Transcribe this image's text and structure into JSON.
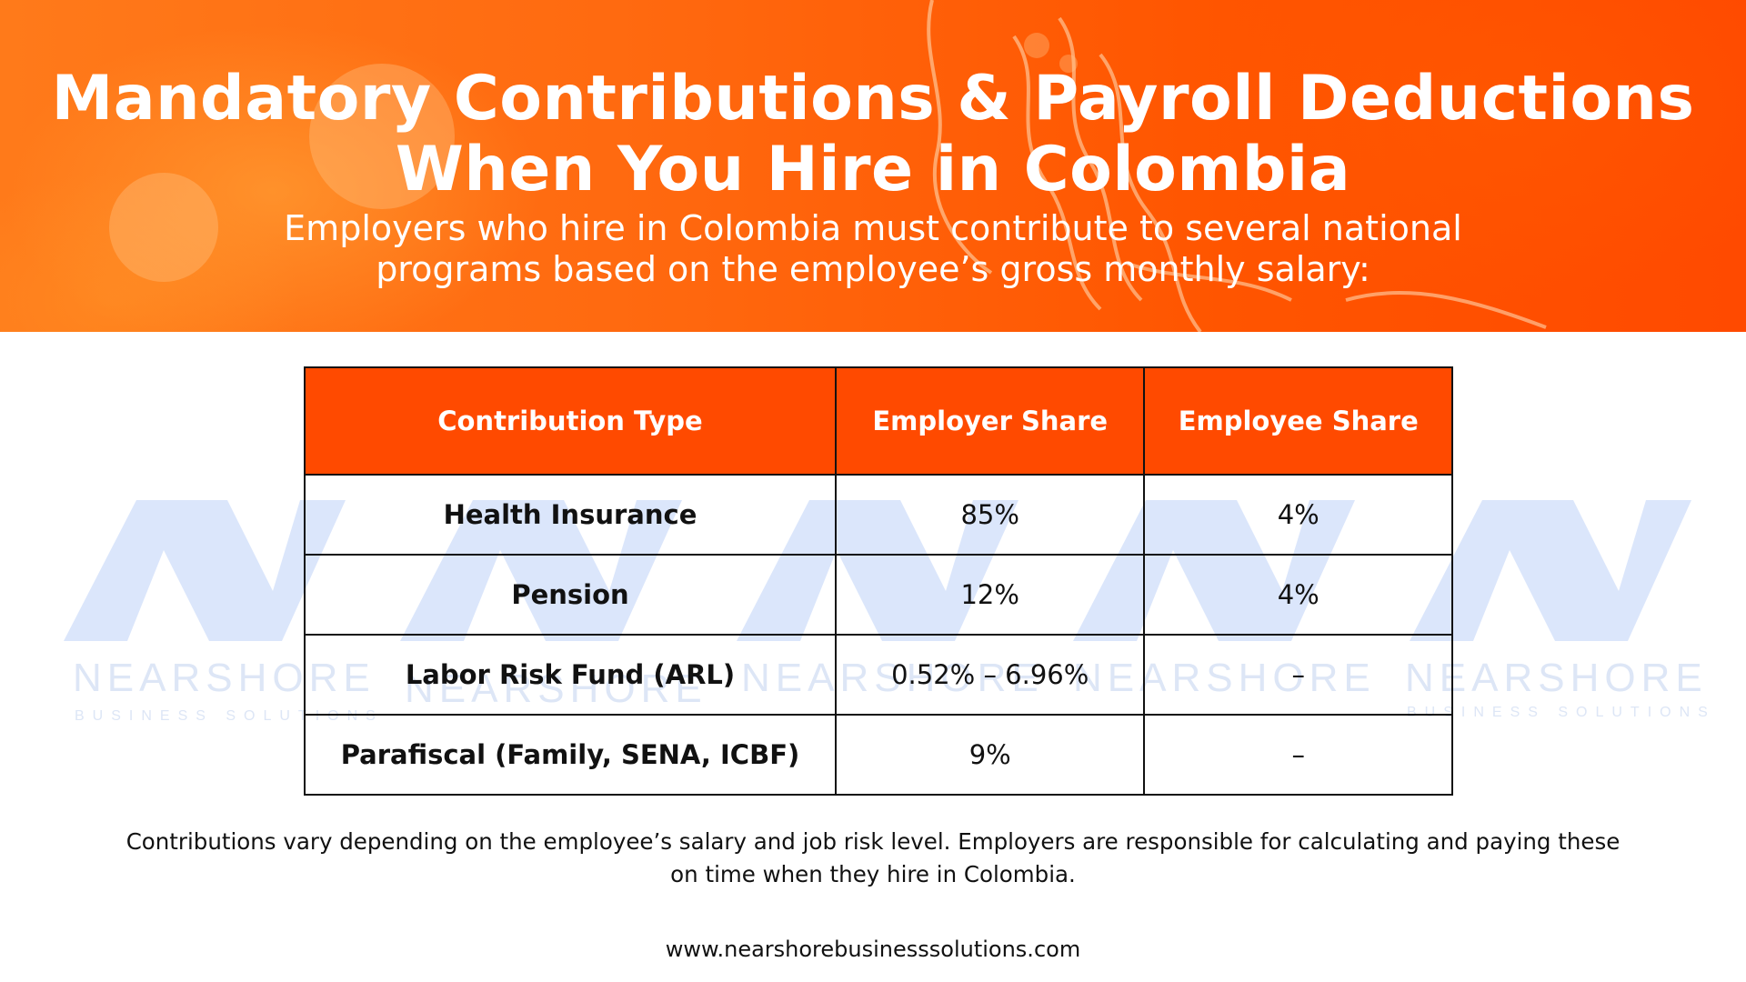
{
  "header": {
    "title_line1": "Mandatory Contributions & Payroll Deductions",
    "title_line2": "When You Hire in Colombia",
    "subtitle_line1": "Employers who hire in Colombia must contribute to several national",
    "subtitle_line2": "programs based on the employee’s gross monthly salary:",
    "accent_color": "#ff4a00"
  },
  "watermark": {
    "logo_text": "NEARSHORE",
    "tagline": "BUSINESS SOLUTIONS",
    "color": "#dbe6fb"
  },
  "table": {
    "headers": [
      "Contribution Type",
      "Employer Share",
      "Employee Share"
    ],
    "rows": [
      {
        "type": "Health Insurance",
        "employer": "85%",
        "employee": "4%"
      },
      {
        "type": "Pension",
        "employer": "12%",
        "employee": "4%"
      },
      {
        "type": "Labor Risk Fund (ARL)",
        "employer": "0.52% – 6.96%",
        "employee": "–"
      },
      {
        "type": "Parafiscal (Family, SENA, ICBF)",
        "employer": "9%",
        "employee": "–"
      }
    ]
  },
  "footer": {
    "note_line1": "Contributions vary depending on the employee’s salary and job risk level. Employers are responsible for calculating and paying these",
    "note_line2": "on time when they hire in Colombia.",
    "url": "www.nearshorebusinesssolutions.com"
  }
}
